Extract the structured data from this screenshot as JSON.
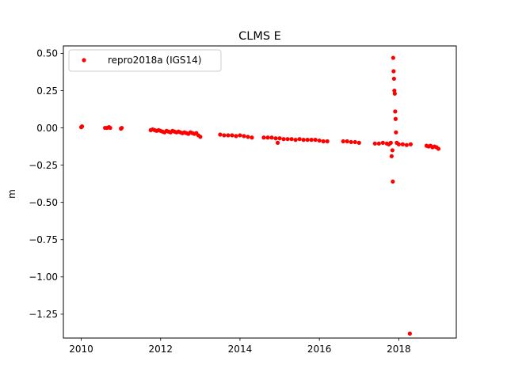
{
  "chart_data": {
    "type": "scatter",
    "title": "CLMS E",
    "xlabel": "",
    "ylabel": "m",
    "xlim": [
      2009.55,
      2019.45
    ],
    "ylim": [
      -1.41,
      0.55
    ],
    "xticks": [
      2010,
      2012,
      2014,
      2016,
      2018
    ],
    "xtick_labels": [
      "2010",
      "2012",
      "2014",
      "2016",
      "2018"
    ],
    "yticks": [
      0.5,
      0.25,
      0.0,
      -0.25,
      -0.5,
      -0.75,
      -1.0,
      -1.25
    ],
    "ytick_labels": [
      "0.50",
      "0.25",
      "0.00",
      "−0.25",
      "−0.50",
      "−0.75",
      "−1.00",
      "−1.25"
    ],
    "grid": false,
    "legend_position": "upper-left",
    "series": [
      {
        "name": "repro2018a (IGS14)",
        "color": "#ff0000",
        "marker": "circle",
        "x": [
          2010.0,
          2010.02,
          2010.6,
          2010.65,
          2010.7,
          2010.73,
          2011.0,
          2011.02,
          2011.75,
          2011.8,
          2011.85,
          2011.9,
          2011.95,
          2012.0,
          2012.05,
          2012.1,
          2012.15,
          2012.2,
          2012.25,
          2012.3,
          2012.35,
          2012.4,
          2012.45,
          2012.5,
          2012.55,
          2012.6,
          2012.65,
          2012.7,
          2012.75,
          2012.8,
          2012.85,
          2012.9,
          2012.95,
          2013.0,
          2013.5,
          2013.6,
          2013.7,
          2013.8,
          2013.9,
          2014.0,
          2014.1,
          2014.2,
          2014.3,
          2014.6,
          2014.7,
          2014.8,
          2014.9,
          2014.95,
          2015.0,
          2015.1,
          2015.2,
          2015.3,
          2015.4,
          2015.5,
          2015.6,
          2015.7,
          2015.8,
          2015.9,
          2016.0,
          2016.1,
          2016.2,
          2016.6,
          2016.7,
          2016.8,
          2016.9,
          2017.0,
          2017.4,
          2017.5,
          2017.6,
          2017.7,
          2017.75,
          2017.8,
          2017.82,
          2017.84,
          2017.85,
          2017.86,
          2017.87,
          2017.88,
          2017.89,
          2017.9,
          2017.91,
          2017.92,
          2017.93,
          2017.95,
          2018.0,
          2018.1,
          2018.2,
          2018.28,
          2018.3,
          2018.7,
          2018.75,
          2018.8,
          2018.85,
          2018.9,
          2018.95,
          2019.0
        ],
        "y": [
          0.005,
          0.01,
          0.0,
          0.0,
          0.005,
          0.0,
          -0.005,
          0.0,
          -0.015,
          -0.01,
          -0.015,
          -0.02,
          -0.015,
          -0.02,
          -0.025,
          -0.03,
          -0.02,
          -0.025,
          -0.03,
          -0.02,
          -0.025,
          -0.03,
          -0.025,
          -0.03,
          -0.035,
          -0.03,
          -0.035,
          -0.04,
          -0.03,
          -0.035,
          -0.04,
          -0.035,
          -0.05,
          -0.06,
          -0.045,
          -0.05,
          -0.05,
          -0.05,
          -0.055,
          -0.05,
          -0.055,
          -0.06,
          -0.065,
          -0.065,
          -0.065,
          -0.065,
          -0.07,
          -0.1,
          -0.07,
          -0.075,
          -0.075,
          -0.075,
          -0.08,
          -0.075,
          -0.08,
          -0.08,
          -0.08,
          -0.08,
          -0.085,
          -0.09,
          -0.09,
          -0.09,
          -0.09,
          -0.095,
          -0.095,
          -0.1,
          -0.105,
          -0.105,
          -0.1,
          -0.105,
          -0.11,
          -0.1,
          -0.19,
          -0.15,
          -0.36,
          0.47,
          0.38,
          0.33,
          0.25,
          0.23,
          0.11,
          0.06,
          -0.03,
          -0.1,
          -0.11,
          -0.11,
          -0.115,
          -1.38,
          -0.11,
          -0.12,
          -0.125,
          -0.12,
          -0.13,
          -0.125,
          -0.13,
          -0.14
        ]
      }
    ]
  }
}
